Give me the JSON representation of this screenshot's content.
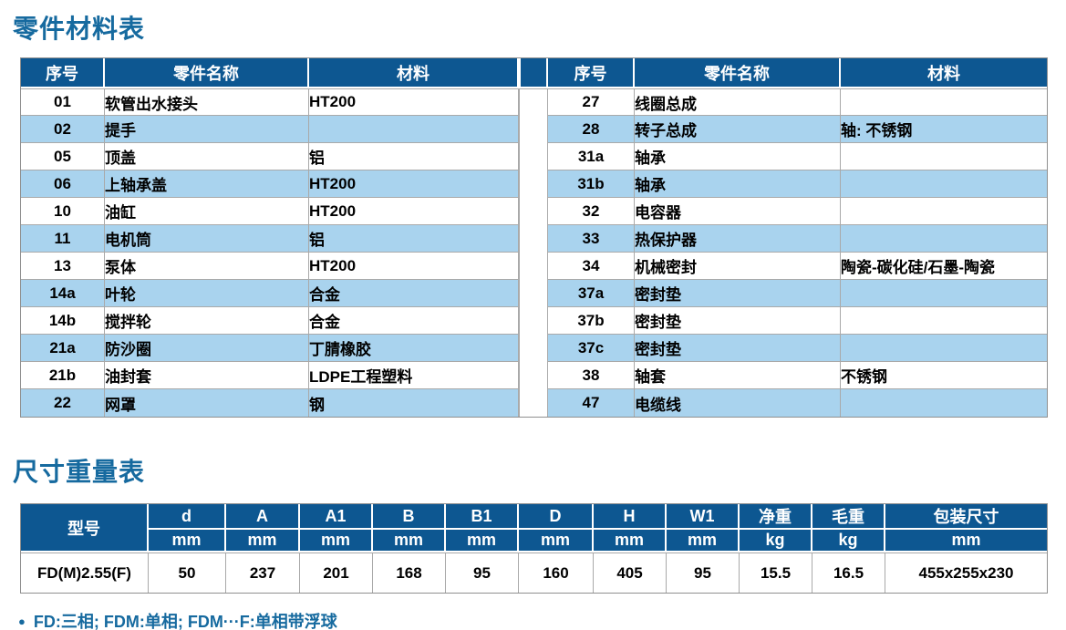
{
  "sections": {
    "parts": {
      "title": "零件材料表",
      "headers": {
        "no": "序号",
        "name": "零件名称",
        "material": "材料"
      },
      "left_rows": [
        {
          "no": "01",
          "name": "软管出水接头",
          "material": "HT200"
        },
        {
          "no": "02",
          "name": "提手",
          "material": ""
        },
        {
          "no": "05",
          "name": "顶盖",
          "material": "铝"
        },
        {
          "no": "06",
          "name": "上轴承盖",
          "material": "HT200"
        },
        {
          "no": "10",
          "name": "油缸",
          "material": "HT200"
        },
        {
          "no": "11",
          "name": "电机筒",
          "material": "铝"
        },
        {
          "no": "13",
          "name": "泵体",
          "material": "HT200"
        },
        {
          "no": "14a",
          "name": "叶轮",
          "material": "合金"
        },
        {
          "no": "14b",
          "name": "搅拌轮",
          "material": "合金"
        },
        {
          "no": "21a",
          "name": "防沙圈",
          "material": "丁腈橡胶"
        },
        {
          "no": "21b",
          "name": "油封套",
          "material": "LDPE工程塑料"
        },
        {
          "no": "22",
          "name": "网罩",
          "material": "钢"
        }
      ],
      "right_rows": [
        {
          "no": "27",
          "name": "线圈总成",
          "material": ""
        },
        {
          "no": "28",
          "name": "转子总成",
          "material": "轴: 不锈钢"
        },
        {
          "no": "31a",
          "name": "轴承",
          "material": ""
        },
        {
          "no": "31b",
          "name": "轴承",
          "material": ""
        },
        {
          "no": "32",
          "name": "电容器",
          "material": ""
        },
        {
          "no": "33",
          "name": "热保护器",
          "material": ""
        },
        {
          "no": "34",
          "name": "机械密封",
          "material": "陶瓷-碳化硅/石墨-陶瓷"
        },
        {
          "no": "37a",
          "name": "密封垫",
          "material": ""
        },
        {
          "no": "37b",
          "name": "密封垫",
          "material": ""
        },
        {
          "no": "37c",
          "name": "密封垫",
          "material": ""
        },
        {
          "no": "38",
          "name": "轴套",
          "material": "不锈钢"
        },
        {
          "no": "47",
          "name": "电缆线",
          "material": ""
        }
      ]
    },
    "dims": {
      "title": "尺寸重量表",
      "model_header": "型号",
      "columns": [
        {
          "label": "d",
          "unit": "mm"
        },
        {
          "label": "A",
          "unit": "mm"
        },
        {
          "label": "A1",
          "unit": "mm"
        },
        {
          "label": "B",
          "unit": "mm"
        },
        {
          "label": "B1",
          "unit": "mm"
        },
        {
          "label": "D",
          "unit": "mm"
        },
        {
          "label": "H",
          "unit": "mm"
        },
        {
          "label": "W1",
          "unit": "mm"
        },
        {
          "label": "净重",
          "unit": "kg"
        },
        {
          "label": "毛重",
          "unit": "kg"
        },
        {
          "label": "包装尺寸",
          "unit": "mm"
        }
      ],
      "row": {
        "model": "FD(M)2.55(F)",
        "values": [
          "50",
          "237",
          "201",
          "168",
          "95",
          "160",
          "405",
          "95",
          "15.5",
          "16.5",
          "455x255x230"
        ]
      }
    },
    "footnote": "FD:三相; FDM:单相; FDM···F:单相带浮球"
  },
  "colors": {
    "header_bg": "#0d5791",
    "alt_row_bg": "#a9d3ee",
    "title_text": "#166a9f"
  }
}
